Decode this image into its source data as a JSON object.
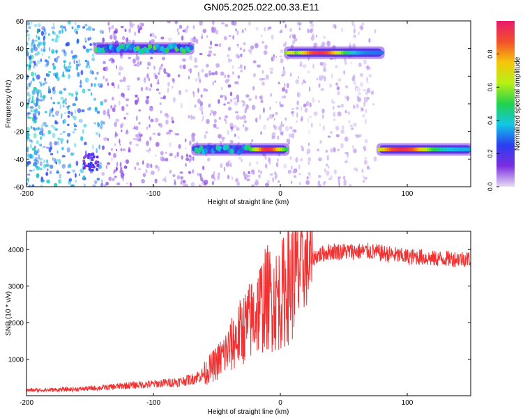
{
  "title": "GN05.2025.022.00.33.E11",
  "chart_data": [
    {
      "type": "heatmap",
      "xlabel": "Height of straight line (km)",
      "ylabel": "Frequency (Hz)",
      "xlim": [
        -200,
        150
      ],
      "ylim": [
        -60,
        60
      ],
      "xticks": [
        -200,
        -100,
        0,
        100
      ],
      "yticks": [
        -60,
        -40,
        -20,
        0,
        20,
        40,
        60
      ],
      "grid": false,
      "colorbar": {
        "label": "Normalized spectral amplitude",
        "range": [
          0,
          1
        ],
        "ticks": [
          0.0,
          0.2,
          0.4,
          0.6,
          0.8
        ],
        "colors": [
          "#e8dcf5",
          "#7b2ee0",
          "#2b3df0",
          "#12c6e6",
          "#22d24c",
          "#b8ef16",
          "#f5c60c",
          "#f2502a",
          "#ea1a6e"
        ]
      },
      "bands": [
        {
          "x": [
            -145,
            -70
          ],
          "y": 40,
          "peak": 0.5
        },
        {
          "x": [
            5,
            80
          ],
          "y": 37,
          "peak": 0.95
        },
        {
          "x": [
            -68,
            5
          ],
          "y": -33,
          "peak": 0.95
        },
        {
          "x": [
            78,
            150
          ],
          "y": -33,
          "peak": 0.9
        }
      ]
    },
    {
      "type": "line",
      "xlabel": "Height of straight line (km)",
      "ylabel": "SNR (10 * v/v)",
      "xlim": [
        -200,
        150
      ],
      "ylim": [
        0,
        4500
      ],
      "xticks": [
        -200,
        -100,
        0,
        100
      ],
      "yticks": [
        1000,
        2000,
        3000,
        4000
      ],
      "grid": false,
      "color": "#f03232",
      "x": [
        -200,
        -180,
        -160,
        -140,
        -120,
        -100,
        -80,
        -70,
        -60,
        -50,
        -40,
        -30,
        -20,
        -15,
        -10,
        -5,
        0,
        5,
        10,
        15,
        20,
        25,
        30,
        40,
        50,
        60,
        70,
        80,
        90,
        100,
        110,
        120,
        130,
        140,
        150
      ],
      "y": [
        150,
        160,
        180,
        220,
        280,
        320,
        380,
        450,
        600,
        900,
        1300,
        1800,
        2200,
        2500,
        2700,
        2600,
        2700,
        3000,
        3200,
        3400,
        3600,
        3750,
        3850,
        3950,
        3950,
        3950,
        3950,
        3900,
        3850,
        3800,
        3800,
        3750,
        3750,
        3750,
        3750
      ]
    }
  ]
}
